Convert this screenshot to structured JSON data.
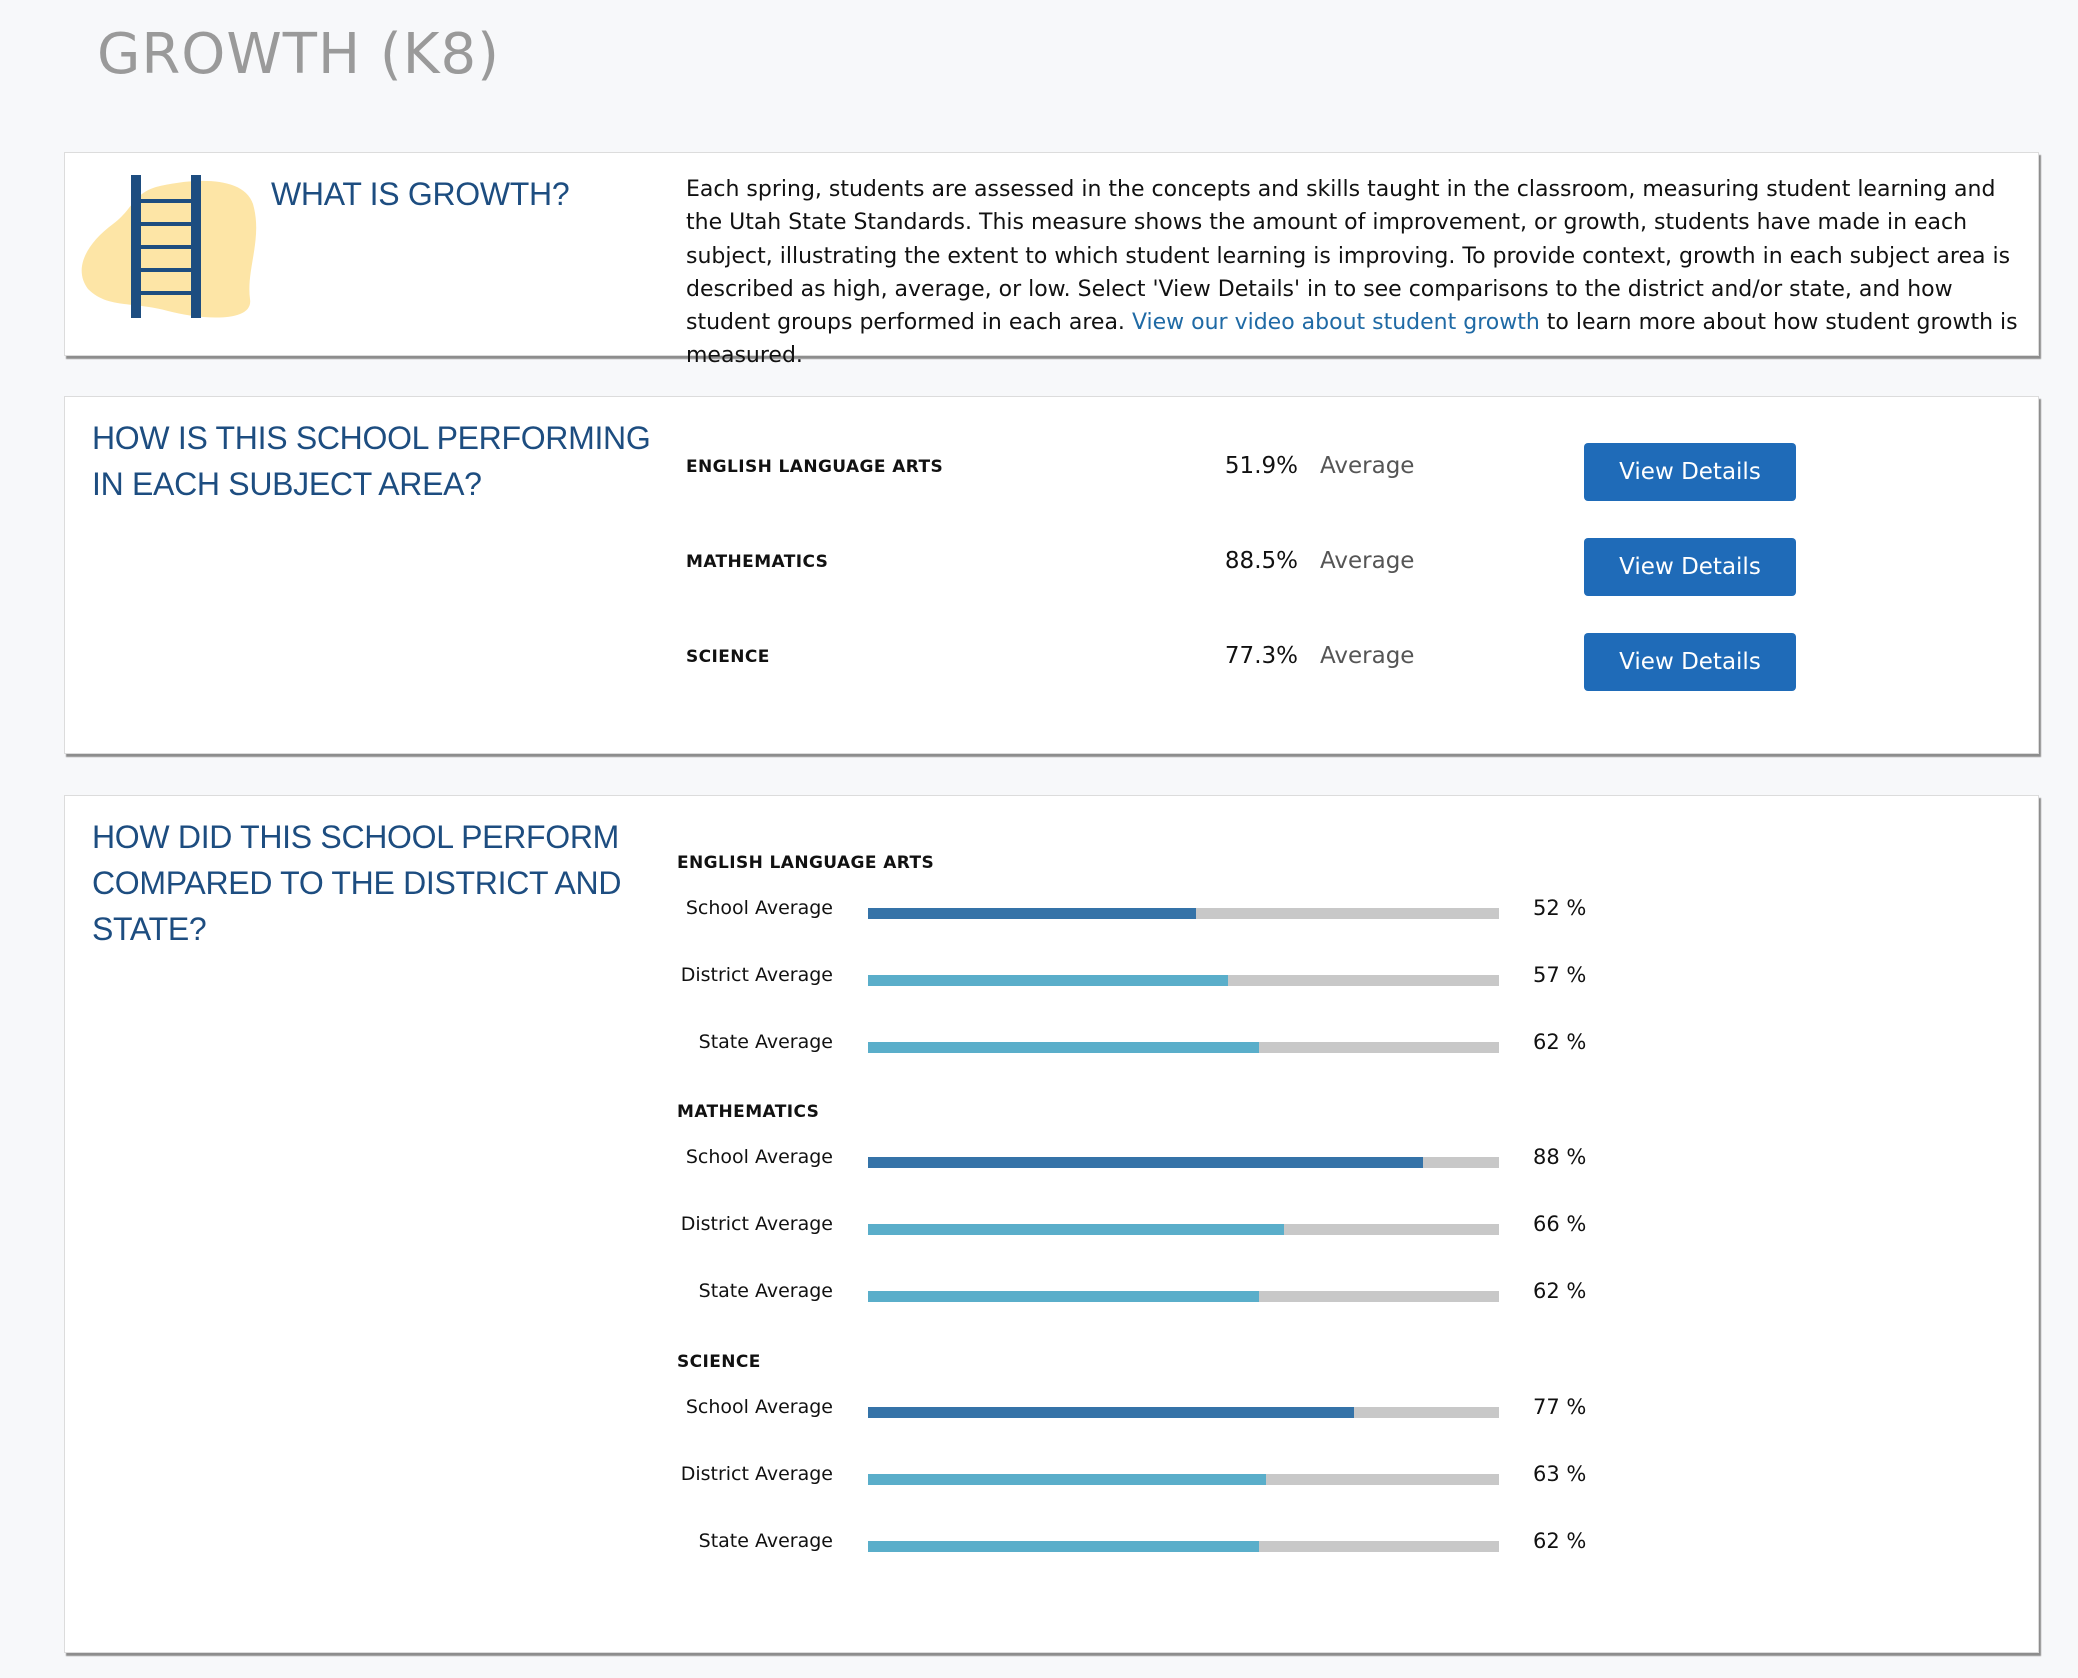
{
  "page_title": "GROWTH (K8)",
  "colors": {
    "heading": "#1d4d80",
    "button": "#1f6bb8",
    "school_bar": "#3573a8",
    "comparison_bar": "#5aaeca",
    "track": "#c8c8c8",
    "blob": "#fde5a6"
  },
  "what": {
    "heading": "WHAT IS GROWTH?",
    "icon": "ladder-icon",
    "body": "Each spring, students are assessed in the concepts and skills taught in the classroom, measuring student learning and the Utah State Standards. This measure shows the amount of improvement, or growth, students have made in each subject, illustrating the extent to which student learning is improving. To provide context, growth in each subject area is described as high, average, or low. Select 'View Details' in to see comparisons to the district and/or state, and how student groups performed in each area.",
    "link_text": "View our video about student growth",
    "link_suffix": " to learn more about how student growth is measured."
  },
  "subjects": {
    "heading": "HOW IS THIS SCHOOL PERFORMING IN EACH SUBJECT AREA?",
    "rows": [
      {
        "name": "ENGLISH LANGUAGE ARTS",
        "percent": "51.9%",
        "rating": "Average",
        "button": "View Details"
      },
      {
        "name": "MATHEMATICS",
        "percent": "88.5%",
        "rating": "Average",
        "button": "View Details"
      },
      {
        "name": "SCIENCE",
        "percent": "77.3%",
        "rating": "Average",
        "button": "View Details"
      }
    ]
  },
  "compare": {
    "heading": "HOW DID THIS SCHOOL PERFORM COMPARED TO THE DISTRICT AND STATE?",
    "groups": [
      {
        "subject": "ENGLISH LANGUAGE ARTS",
        "bars": [
          {
            "label": "School Average",
            "value": 52,
            "text": "52 %",
            "kind": "school"
          },
          {
            "label": "District Average",
            "value": 57,
            "text": "57 %",
            "kind": "comparison"
          },
          {
            "label": "State Average",
            "value": 62,
            "text": "62 %",
            "kind": "comparison"
          }
        ]
      },
      {
        "subject": "MATHEMATICS",
        "bars": [
          {
            "label": "School Average",
            "value": 88,
            "text": "88 %",
            "kind": "school"
          },
          {
            "label": "District Average",
            "value": 66,
            "text": "66 %",
            "kind": "comparison"
          },
          {
            "label": "State Average",
            "value": 62,
            "text": "62 %",
            "kind": "comparison"
          }
        ]
      },
      {
        "subject": "SCIENCE",
        "bars": [
          {
            "label": "School Average",
            "value": 77,
            "text": "77 %",
            "kind": "school"
          },
          {
            "label": "District Average",
            "value": 63,
            "text": "63 %",
            "kind": "comparison"
          },
          {
            "label": "State Average",
            "value": 62,
            "text": "62 %",
            "kind": "comparison"
          }
        ]
      }
    ]
  }
}
